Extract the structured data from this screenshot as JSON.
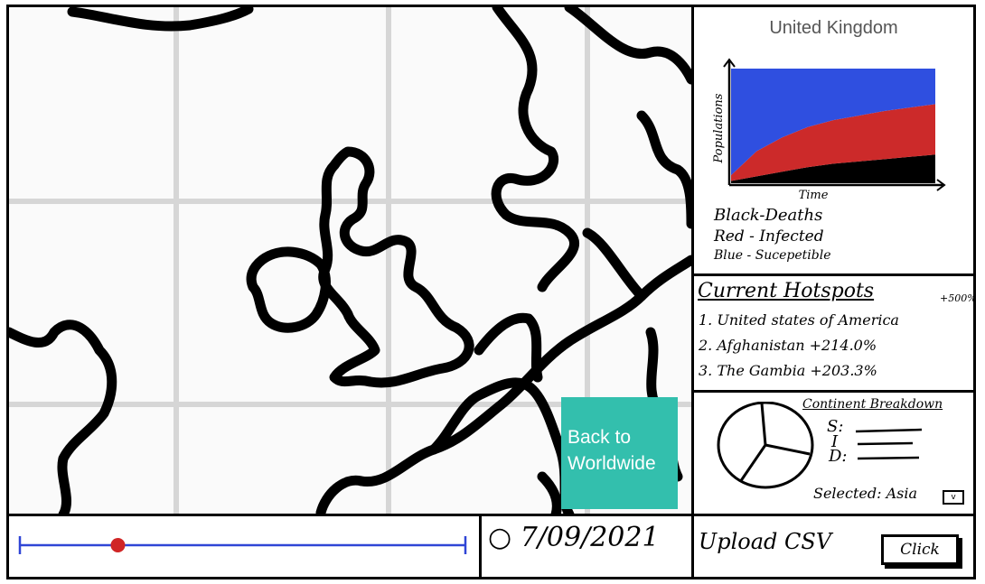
{
  "map": {
    "back_button": {
      "line1": "Back to",
      "line2": "Worldwide"
    }
  },
  "country_panel": {
    "title": "United Kingdom",
    "chart_data": {
      "type": "area",
      "xlabel": "Time",
      "ylabel": "Populations",
      "x": [
        0,
        1,
        2,
        3,
        4,
        5,
        6,
        7,
        8
      ],
      "series": [
        {
          "name": "Deaths",
          "color": "#000000",
          "values": [
            0.02,
            0.06,
            0.1,
            0.14,
            0.17,
            0.19,
            0.21,
            0.23,
            0.25
          ]
        },
        {
          "name": "Infected",
          "color": "#cc2a2a",
          "values": [
            0.05,
            0.22,
            0.3,
            0.35,
            0.38,
            0.4,
            0.42,
            0.43,
            0.44
          ]
        },
        {
          "name": "Sucepetible",
          "color": "#2f4fe0",
          "values": [
            0.93,
            0.72,
            0.6,
            0.51,
            0.45,
            0.41,
            0.37,
            0.34,
            0.31
          ]
        }
      ],
      "ylim": [
        0,
        1
      ]
    },
    "legend": {
      "black": "Black-Deaths",
      "red": "Red - Infected",
      "blue": "Blue - Sucepetible"
    }
  },
  "hotspots": {
    "title": "Current Hotspots",
    "items": [
      {
        "text": "1. United states of America",
        "change": "+500%"
      },
      {
        "text": "2. Afghanistan",
        "change": "+214.0%"
      },
      {
        "text": "3. The Gambia",
        "change": "+203.3%"
      }
    ]
  },
  "continent": {
    "title": "Continent Breakdown",
    "labels": {
      "s": "S:",
      "i": "I",
      "d": "D:"
    },
    "selected_label": "Selected:",
    "selected_value": "Asia",
    "dropdown_glyph": "v"
  },
  "timeline": {
    "date": "7/09/2021",
    "slider_position": 0.22
  },
  "upload": {
    "label": "Upload CSV",
    "button": "Click"
  }
}
